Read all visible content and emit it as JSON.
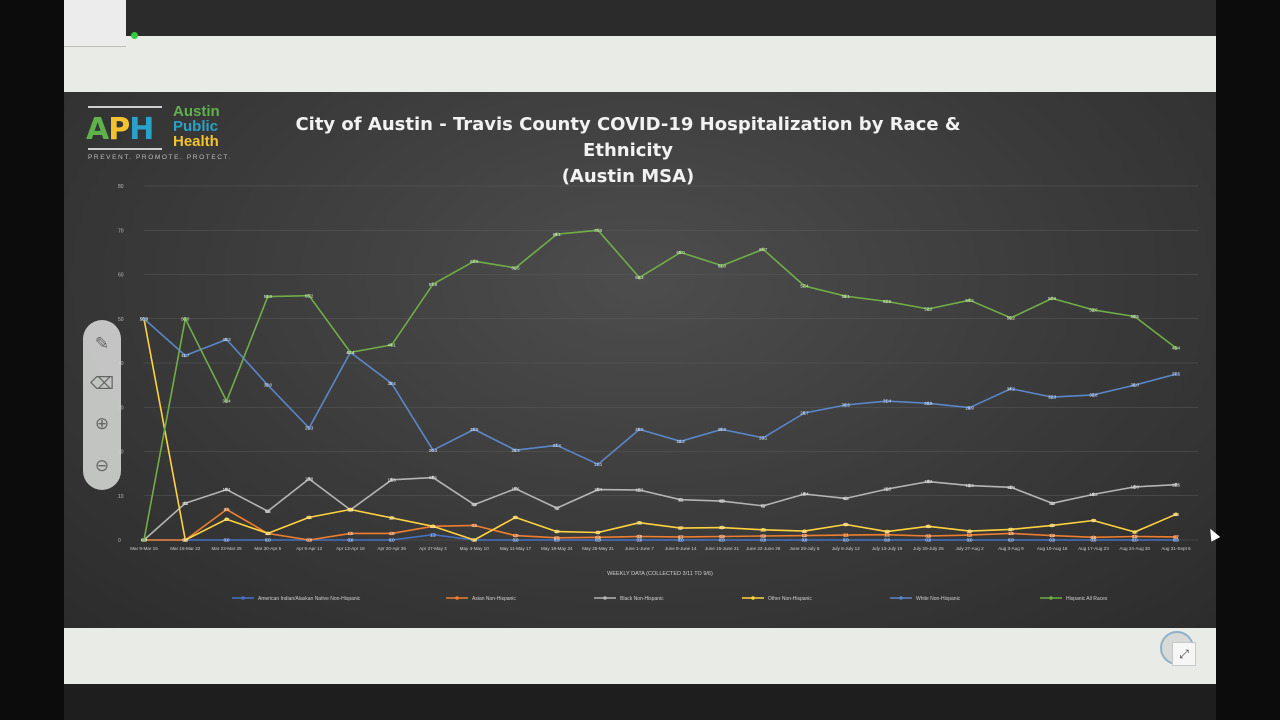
{
  "window": {
    "title": ""
  },
  "logo": {
    "mark_a": "A",
    "mark_p": "P",
    "mark_h": "H",
    "line1": "Austin",
    "line2": "Public",
    "line3": "Health",
    "tagline": "PREVENT. PROMOTE. PROTECT."
  },
  "slide": {
    "title_line1": "City of Austin - Travis County COVID-19 Hospitalization by Race & Ethnicity",
    "title_line2": "(Austin MSA)"
  },
  "toolbar": {
    "tools": [
      {
        "name": "pen-icon",
        "glyph": "✎"
      },
      {
        "name": "eraser-icon",
        "glyph": "⌫"
      },
      {
        "name": "zoom-in-icon",
        "glyph": "⊕"
      },
      {
        "name": "zoom-out-icon",
        "glyph": "⊖"
      }
    ]
  },
  "chart_data": {
    "type": "line",
    "title": "City of Austin - Travis County COVID-19 Hospitalization by Race & Ethnicity (Austin MSA)",
    "xlabel": "WEEKLY DATA (COLLECTED 3/11 TO 9/6)",
    "ylabel": "",
    "ylim": [
      0,
      80
    ],
    "yticks": [
      0,
      10,
      20,
      30,
      40,
      50,
      60,
      70,
      80
    ],
    "grid": true,
    "legend_position": "bottom",
    "categories": [
      "Mar 9-Mar 15",
      "Mar 16-Mar 22",
      "Mar 23-Mar 29",
      "Mar 30-Apr 5",
      "Apr 6-Apr 12",
      "Apr 13-Apr 19",
      "Apr 20-Apr 26",
      "Apr 27-May 3",
      "May 4-May 10",
      "May 11-May 17",
      "May 18-May 24",
      "May 25-May 31",
      "June 1-June 7",
      "June 8-June 14",
      "June 15-June 21",
      "June 22-June 28",
      "June 29-July 5",
      "July 6-July 12",
      "July 13-July 19",
      "July 20-July 26",
      "July 27-Aug 2",
      "Aug 3-Aug 9",
      "Aug 10-Aug 16",
      "Aug 17-Aug 23",
      "Aug 24-Aug 30",
      "Aug 31-Sept 6"
    ],
    "series": [
      {
        "name": "American Indian/Alaskan Native Non-Hispanic",
        "color": "#4472c4",
        "values": [
          0,
          0,
          0,
          0,
          0,
          0,
          0,
          1.2,
          0,
          0,
          0,
          0,
          0,
          0,
          0,
          0,
          0,
          0,
          0,
          0,
          0,
          0,
          0,
          0,
          0,
          0
        ],
        "labels": [
          "0.0",
          "0.0",
          "0.0",
          "0.0",
          "0.0",
          "0.0",
          "0.0",
          "1.2",
          "0.0",
          "0.0",
          "0.0",
          "0.0",
          "0.0",
          "0.0",
          "0.0",
          "0.0",
          "0.0",
          "0.0",
          "0.0",
          "0.0",
          "0.0",
          "0.0",
          "0.0",
          "0.0",
          "0.0",
          "0.0"
        ]
      },
      {
        "name": "Asian Non-Hispanic",
        "color": "#ed7d31",
        "values": [
          0,
          0,
          6.9,
          1.5,
          0,
          1.5,
          1.5,
          3.1,
          3.3,
          1,
          0.5,
          0.6,
          0.8,
          0.7,
          0.8,
          0.9,
          1,
          1.1,
          1.2,
          0.9,
          1.1,
          1.5,
          1,
          0.6,
          0.8,
          0.7
        ],
        "labels": [
          "0.0",
          "0.0",
          "6.9",
          "1.5",
          "0.0",
          "1.5",
          "1.5",
          "3.1",
          "3.3",
          "1.0",
          "0.5",
          "0.6",
          "0.8",
          "0.7",
          "0.8",
          "0.9",
          "1.0",
          "1.1",
          "1.2",
          "0.9",
          "1.1",
          "1.5",
          "1.0",
          "0.6",
          "0.8",
          "0.7"
        ]
      },
      {
        "name": "Black Non-Hispanic",
        "color": "#b4b4b4",
        "values": [
          0,
          8.3,
          11.4,
          6.5,
          13.8,
          6.8,
          13.6,
          14.1,
          8,
          11.6,
          7.2,
          11.4,
          11.3,
          9.1,
          8.8,
          7.7,
          10.4,
          9.4,
          11.5,
          13.2,
          12.3,
          11.9,
          8.3,
          10.3,
          12,
          12.5
        ],
        "labels": [
          "0.0",
          "8.3",
          "11.4",
          "6.5",
          "13.8",
          "6.8",
          "13.6",
          "14.1",
          "8.0",
          "11.6",
          "7.2",
          "11.4",
          "11.3",
          "9.1",
          "8.8",
          "7.7",
          "10.4",
          "9.4",
          "11.5",
          "13.2",
          "12.3",
          "11.9",
          "8.3",
          "10.3",
          "12.0",
          "12.5"
        ]
      },
      {
        "name": "Other Non-Hispanic",
        "color": "#ffd23f",
        "values": [
          50,
          0,
          4.7,
          1.5,
          5.1,
          6.9,
          5,
          3.1,
          0,
          5.1,
          1.9,
          1.7,
          3.9,
          2.7,
          2.8,
          2.3,
          2,
          3.5,
          1.9,
          3.1,
          2,
          2.4,
          3.3,
          4.4,
          1.8,
          5.8
        ],
        "labels": [
          "50.0",
          "0.0",
          "4.7",
          "1.5",
          "5.1",
          "6.9",
          "5.0",
          "3.1",
          "0.0",
          "5.1",
          "1.9",
          "1.7",
          "3.9",
          "2.7",
          "2.8",
          "2.3",
          "2.0",
          "3.5",
          "1.9",
          "3.1",
          "2.0",
          "2.4",
          "3.3",
          "4.4",
          "1.8",
          "5.8"
        ]
      },
      {
        "name": "White Non-Hispanic",
        "color": "#5b86c8",
        "values": [
          50,
          41.7,
          45.3,
          35,
          25.3,
          42.4,
          35.4,
          20.3,
          25,
          20.3,
          21.4,
          17.1,
          25,
          22.3,
          25,
          23.1,
          28.7,
          30.5,
          31.4,
          30.9,
          29.9,
          34.2,
          32.3,
          32.8,
          35,
          37.5
        ],
        "labels": [
          "50.0",
          "41.7",
          "45.3",
          "35.0",
          "25.3",
          "42.4",
          "35.4",
          "20.3",
          "25.0",
          "20.3",
          "21.4",
          "17.1",
          "25.0",
          "22.3",
          "25.0",
          "23.1",
          "28.7",
          "30.5",
          "31.4",
          "30.9",
          "29.9",
          "34.2",
          "32.3",
          "32.8",
          "35.0",
          "37.5"
        ]
      },
      {
        "name": "Hispanic All Races",
        "color": "#70ad47",
        "values": [
          0,
          50,
          31.4,
          55,
          55.2,
          42.4,
          44.1,
          57.8,
          63,
          61.5,
          69.1,
          70,
          59.3,
          65,
          62,
          65.7,
          57.4,
          55.1,
          53.9,
          52.2,
          54.2,
          50.2,
          54.6,
          52,
          50.5,
          43.4
        ],
        "labels": [
          "0.0",
          "50.0",
          "31.4",
          "55.0",
          "55.2",
          "42.4",
          "44.1",
          "57.8",
          "63.0",
          "61.5",
          "69.1",
          "70.0",
          "59.3",
          "65.0",
          "62.0",
          "65.7",
          "57.4",
          "55.1",
          "53.9",
          "52.2",
          "54.2",
          "50.2",
          "54.6",
          "52.0",
          "50.5",
          "43.4"
        ]
      }
    ]
  }
}
